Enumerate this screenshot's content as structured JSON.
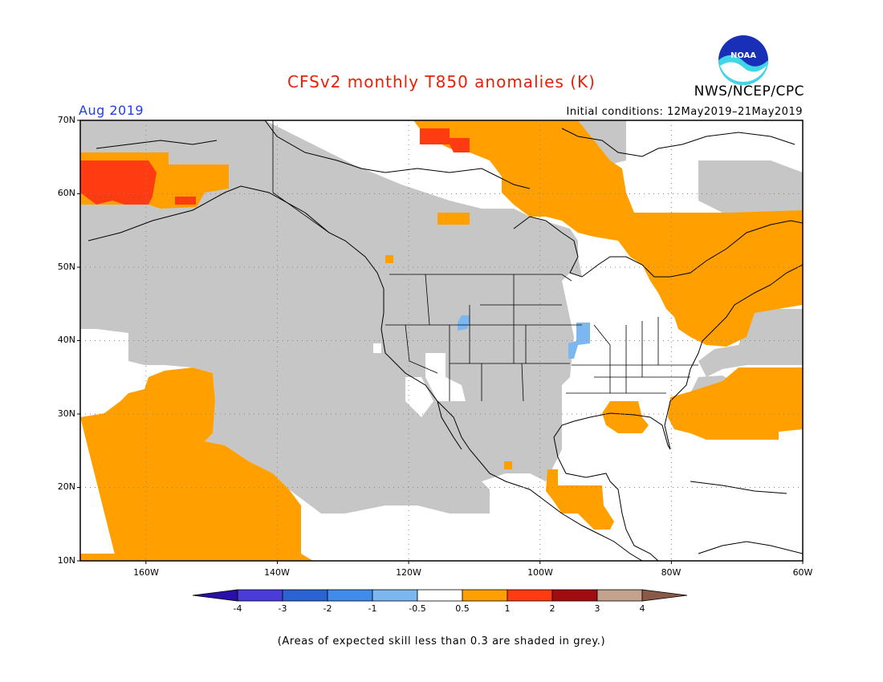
{
  "header": {
    "title": "CFSv2 monthly T850 anomalies (K)",
    "organization": "NWS/NCEP/CPC",
    "valid_period": "Aug 2019",
    "initial_conditions": "Initial conditions: 12May2019–21May2019"
  },
  "logo": {
    "text": "NOAA"
  },
  "map": {
    "region": "North America",
    "lat_labels": [
      "70N",
      "60N",
      "50N",
      "40N",
      "30N",
      "20N",
      "10N"
    ],
    "lon_labels": [
      "160W",
      "140W",
      "120W",
      "100W",
      "80W",
      "60W"
    ],
    "lat_range": [
      10,
      70
    ],
    "lon_range": [
      -170,
      -60
    ],
    "gridlines": true,
    "legend_note": "(Areas of expected skill less than 0.3 are shaded in grey.)"
  },
  "colorbar": {
    "labels": [
      "-4",
      "-3",
      "-2",
      "-1",
      "-0.5",
      "0.5",
      "1",
      "2",
      "3",
      "4"
    ],
    "colors": [
      "#2a10a8",
      "#4a3cd8",
      "#2a63d4",
      "#3f8cec",
      "#7cb7f2",
      "#ffffff",
      "#ffa000",
      "#ff3b12",
      "#a00c10",
      "#c4a28e",
      "#8a5a48"
    ]
  },
  "colors": {
    "grey_low_skill": "#c6c6c6",
    "warm_0_5_1": "#ffa000",
    "warm_1_2": "#ff3b12",
    "cool_m1_m0_5": "#7cb7f2"
  }
}
